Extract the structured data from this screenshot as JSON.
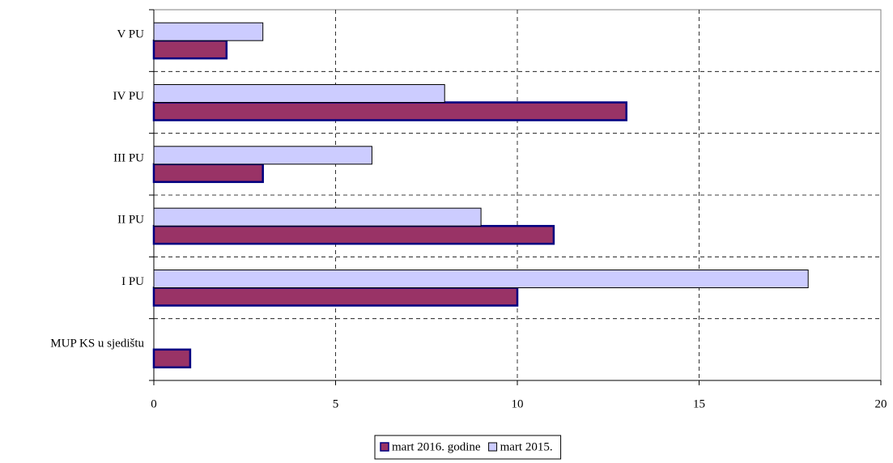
{
  "chart_data": {
    "type": "hbar",
    "categories": [
      "MUP KS u sjedištu",
      "I PU",
      "II PU",
      "III PU",
      "IV PU",
      "V PU"
    ],
    "series": [
      {
        "name": "mart 2016. godine",
        "color": "#993366",
        "values": [
          1,
          10,
          11,
          3,
          13,
          2
        ]
      },
      {
        "name": "mart 2015.",
        "color": "#ccccff",
        "values": [
          null,
          18,
          9,
          6,
          8,
          3
        ]
      }
    ],
    "xlim": [
      0,
      20
    ],
    "xticks": [
      0,
      5,
      10,
      15,
      20
    ],
    "grid": true,
    "legend": "bottom"
  }
}
